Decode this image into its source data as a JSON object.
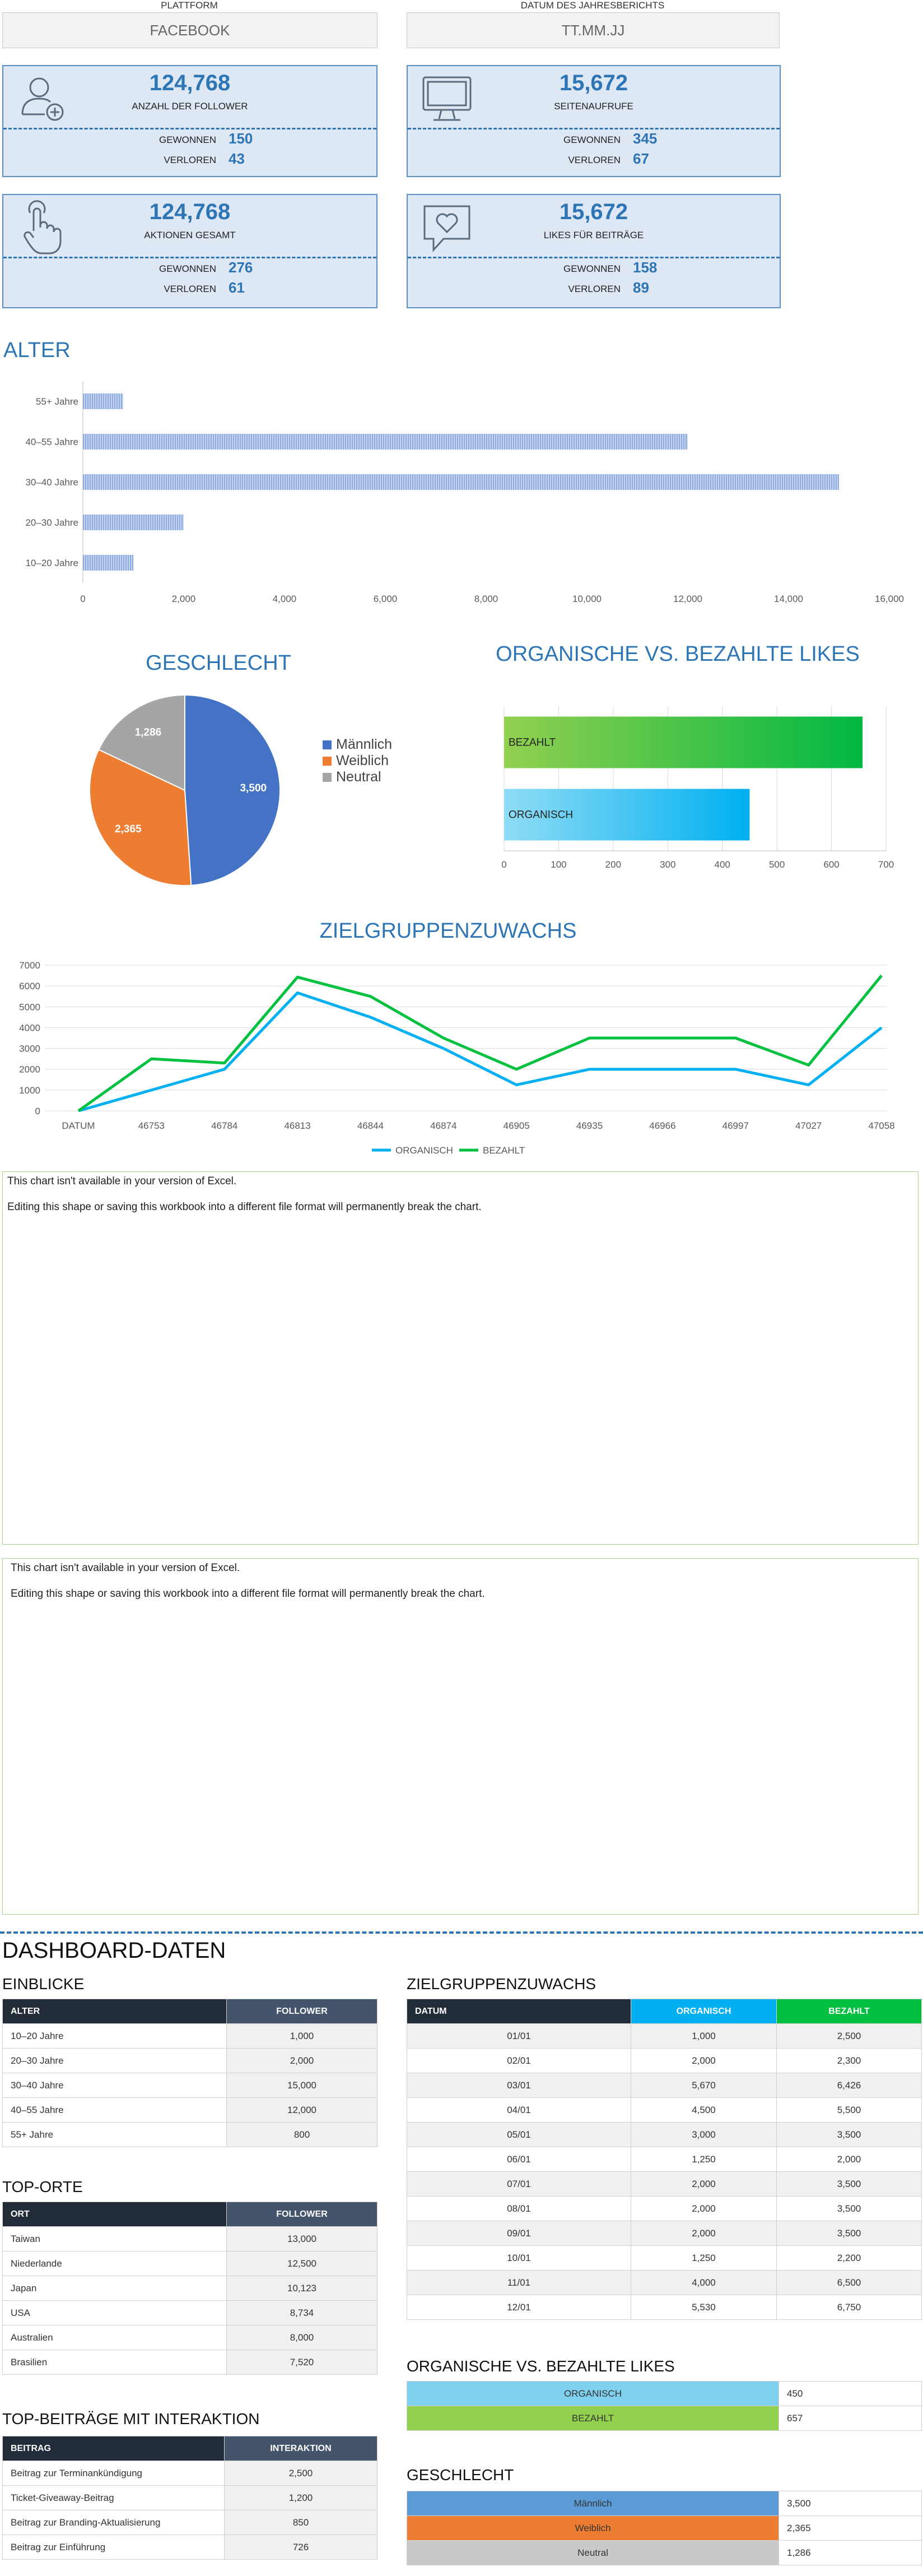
{
  "header": {
    "platform_label": "PLATTFORM",
    "platform_value": "FACEBOOK",
    "date_label": "DATUM DES JAHRESBERICHTS",
    "date_value": "TT.MM.JJ"
  },
  "kpis": [
    {
      "value": "124,768",
      "caption": "ANZAHL DER FOLLOWER",
      "gained_label": "GEWONNEN",
      "gained": "150",
      "lost_label": "VERLOREN",
      "lost": "43",
      "icon": "user-add-icon"
    },
    {
      "value": "15,672",
      "caption": "SEITENAUFRUFE",
      "gained_label": "GEWONNEN",
      "gained": "345",
      "lost_label": "VERLOREN",
      "lost": "67",
      "icon": "monitor-icon"
    },
    {
      "value": "124,768",
      "caption": "AKTIONEN GESAMT",
      "gained_label": "GEWONNEN",
      "gained": "276",
      "lost_label": "VERLOREN",
      "lost": "61",
      "icon": "hand-pointer-icon"
    },
    {
      "value": "15,672",
      "caption": "LIKES FÜR BEITRÄGE",
      "gained_label": "GEWONNEN",
      "gained": "158",
      "lost_label": "VERLOREN",
      "lost": "89",
      "icon": "heart-speech-icon"
    }
  ],
  "colors": {
    "accent": "#2e75b6",
    "kpi_bg": "#dde8f4",
    "male": "#4472c4",
    "female": "#ed7d31",
    "neutral": "#a5a5a5",
    "organic": "#00b0f0",
    "paid": "#00c13f"
  },
  "age_section": {
    "title": "ALTER"
  },
  "unavailable": {
    "line1": "This chart isn't available in your version of Excel.",
    "line2": "Editing this shape or saving this workbook into a different file format will permanently break the chart."
  },
  "chart_data": [
    {
      "type": "bar",
      "orientation": "horizontal",
      "title": "ALTER",
      "categories": [
        "10–20 Jahre",
        "20–30 Jahre",
        "30–40 Jahre",
        "40–55 Jahre",
        "55+ Jahre"
      ],
      "values": [
        1000,
        2000,
        15000,
        12000,
        800
      ],
      "xlim": [
        0,
        16000
      ],
      "xticks": [
        "0",
        "2,000",
        "4,000",
        "6,000",
        "8,000",
        "10,000",
        "12,000",
        "14,000",
        "16,000"
      ]
    },
    {
      "type": "pie",
      "title": "GESCHLECHT",
      "labels": [
        "Männlich",
        "Weiblich",
        "Neutral"
      ],
      "values": [
        3500,
        2365,
        1286
      ],
      "value_labels": [
        "3,500",
        "2,365",
        "1,286"
      ]
    },
    {
      "type": "bar",
      "orientation": "horizontal",
      "title": "ORGANISCHE VS. BEZAHLTE LIKES",
      "categories": [
        "ORGANISCH",
        "BEZAHLT"
      ],
      "values": [
        450,
        657
      ],
      "xlim": [
        0,
        700
      ],
      "xticks": [
        "0",
        "100",
        "200",
        "300",
        "400",
        "500",
        "600",
        "700"
      ]
    },
    {
      "type": "line",
      "title": "ZIELGRUPPENZUWACHS",
      "x": [
        "DATUM",
        "46753",
        "46784",
        "46813",
        "46844",
        "46874",
        "46905",
        "46935",
        "46966",
        "46997",
        "47027",
        "47058"
      ],
      "series": [
        {
          "name": "ORGANISCH",
          "values": [
            0,
            1000,
            2000,
            5670,
            4500,
            3000,
            1250,
            2000,
            2000,
            2000,
            1250,
            4000
          ]
        },
        {
          "name": "BEZAHLT",
          "values": [
            0,
            2500,
            2300,
            6426,
            5500,
            3500,
            2000,
            3500,
            3500,
            3500,
            2200,
            6500
          ]
        }
      ],
      "ylim": [
        0,
        7000
      ],
      "yticks": [
        "0",
        "1000",
        "2000",
        "3000",
        "4000",
        "5000",
        "6000",
        "7000"
      ]
    }
  ],
  "dashboard": {
    "title": "DASHBOARD-DATEN",
    "insights": {
      "title": "EINBLICKE",
      "headers": [
        "ALTER",
        "FOLLOWER"
      ],
      "rows": [
        [
          "10–20 Jahre",
          "1,000"
        ],
        [
          "20–30 Jahre",
          "2,000"
        ],
        [
          "30–40 Jahre",
          "15,000"
        ],
        [
          "40–55 Jahre",
          "12,000"
        ],
        [
          "55+ Jahre",
          "800"
        ]
      ]
    },
    "top_locations": {
      "title": "TOP-ORTE",
      "headers": [
        "ORT",
        "FOLLOWER"
      ],
      "rows": [
        [
          "Taiwan",
          "13,000"
        ],
        [
          "Niederlande",
          "12,500"
        ],
        [
          "Japan",
          "10,123"
        ],
        [
          "USA",
          "8,734"
        ],
        [
          "Australien",
          "8,000"
        ],
        [
          "Brasilien",
          "7,520"
        ]
      ]
    },
    "top_posts": {
      "title": "TOP-BEITRÄGE MIT INTERAKTION",
      "headers": [
        "BEITRAG",
        "INTERAKTION"
      ],
      "rows": [
        [
          "Beitrag zur Terminankündigung",
          "2,500"
        ],
        [
          "Ticket-Giveaway-Beitrag",
          "1,200"
        ],
        [
          "Beitrag zur Branding-Aktualisierung",
          "850"
        ],
        [
          "Beitrag zur Einführung",
          "726"
        ]
      ]
    },
    "growth": {
      "title": "ZIELGRUPPENZUWACHS",
      "headers": [
        "DATUM",
        "ORGANISCH",
        "BEZAHLT"
      ],
      "rows": [
        [
          "01/01",
          "1,000",
          "2,500"
        ],
        [
          "02/01",
          "2,000",
          "2,300"
        ],
        [
          "03/01",
          "5,670",
          "6,426"
        ],
        [
          "04/01",
          "4,500",
          "5,500"
        ],
        [
          "05/01",
          "3,000",
          "3,500"
        ],
        [
          "06/01",
          "1,250",
          "2,000"
        ],
        [
          "07/01",
          "2,000",
          "3,500"
        ],
        [
          "08/01",
          "2,000",
          "3,500"
        ],
        [
          "09/01",
          "2,000",
          "3,500"
        ],
        [
          "10/01",
          "1,250",
          "2,200"
        ],
        [
          "11/01",
          "4,000",
          "6,500"
        ],
        [
          "12/01",
          "5,530",
          "6,750"
        ]
      ]
    },
    "organic_paid": {
      "title": "ORGANISCHE VS. BEZAHLTE LIKES",
      "rows": [
        [
          "ORGANISCH",
          "450"
        ],
        [
          "BEZAHLT",
          "657"
        ]
      ]
    },
    "gender": {
      "title": "GESCHLECHT",
      "rows": [
        [
          "Männlich",
          "3,500"
        ],
        [
          "Weiblich",
          "2,365"
        ],
        [
          "Neutral",
          "1,286"
        ]
      ]
    }
  }
}
